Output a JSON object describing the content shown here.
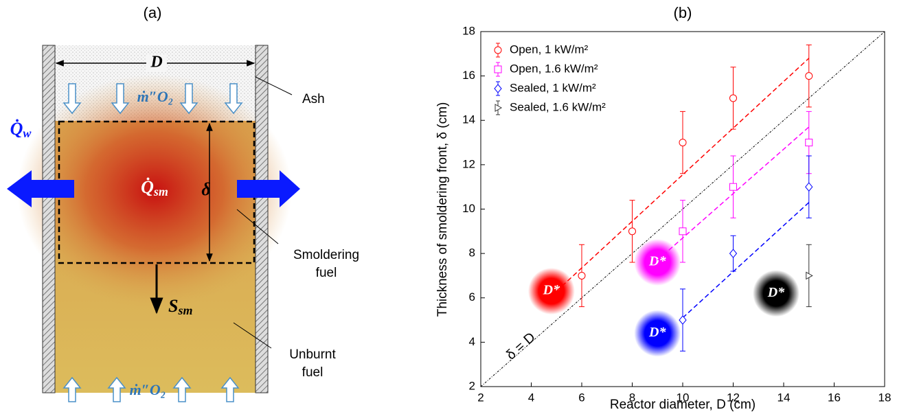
{
  "diagram": {
    "title": "(a)",
    "width_label": "D",
    "oxygen_flux_top": "ṁ″O₂",
    "oxygen_flux_bottom": "ṁ″O₂",
    "ash": "Ash",
    "heat_loss": {
      "symbol": "Q̇",
      "subscript": "w"
    },
    "heat_source": {
      "symbol": "Q̇",
      "subscript": "sm"
    },
    "thickness": "δ",
    "spread": {
      "symbol": "S",
      "subscript": "sm"
    },
    "smoldering_fuel": [
      "Smoldering",
      "fuel"
    ],
    "unburnt_fuel": [
      "Unburnt",
      "fuel"
    ]
  },
  "chart_data": {
    "type": "errorbar",
    "title": "(b)",
    "xlabel": "Reactor diameter, D (cm)",
    "ylabel": "Thickness of smoldering front, δ (cm)",
    "xlim": [
      2,
      18
    ],
    "xticks": [
      2,
      4,
      6,
      8,
      10,
      12,
      14,
      16,
      18
    ],
    "ylim": [
      2,
      18
    ],
    "yticks": [
      2,
      4,
      6,
      8,
      10,
      12,
      14,
      16,
      18
    ],
    "legend": "upper left",
    "series": [
      {
        "name": "Open, 1 kW/m²",
        "color": "#ff0000",
        "marker": "circle",
        "x": [
          6,
          8,
          10,
          12,
          15
        ],
        "values": [
          7,
          9,
          13,
          15,
          16
        ],
        "errors": [
          1.4,
          1.4,
          1.4,
          1.4,
          1.4
        ]
      },
      {
        "name": "Open, 1.6 kW/m²",
        "color": "#ff00ff",
        "marker": "square",
        "x": [
          10,
          12,
          15
        ],
        "values": [
          9,
          11,
          13
        ],
        "errors": [
          1.4,
          1.4,
          1.4
        ]
      },
      {
        "name": "Sealed, 1 kW/m²",
        "color": "#0000ff",
        "marker": "diamond",
        "x": [
          10,
          12,
          15
        ],
        "values": [
          5,
          8,
          11
        ],
        "errors": [
          1.4,
          0.8,
          1.4
        ]
      },
      {
        "name": "Sealed, 1.6 kW/m²",
        "color": "#333333",
        "marker": "triangle",
        "x": [
          15
        ],
        "values": [
          7
        ],
        "errors": [
          1.4
        ]
      }
    ],
    "fit_lines": [
      {
        "color": "#ff0000",
        "x": [
          5,
          15
        ],
        "values": [
          6.3,
          16.8
        ]
      },
      {
        "color": "#ff00ff",
        "x": [
          9,
          15
        ],
        "values": [
          7.7,
          13.7
        ]
      },
      {
        "color": "#0000ff",
        "x": [
          10,
          15
        ],
        "values": [
          5.1,
          10.3
        ]
      }
    ],
    "reference_line": {
      "label": "δ = D",
      "color": "#000000",
      "x": [
        2,
        18
      ],
      "values": [
        2,
        18
      ]
    },
    "critical_markers": [
      {
        "label": "D*",
        "color": "#ff0000",
        "x": 4.8,
        "value": 6.3
      },
      {
        "label": "D*",
        "color": "#ff00ff",
        "x": 9,
        "value": 7.6
      },
      {
        "label": "D*",
        "color": "#0000ff",
        "x": 9,
        "value": 4.4
      },
      {
        "label": "D*",
        "color": "#000000",
        "x": 13.7,
        "value": 6.2
      }
    ]
  }
}
